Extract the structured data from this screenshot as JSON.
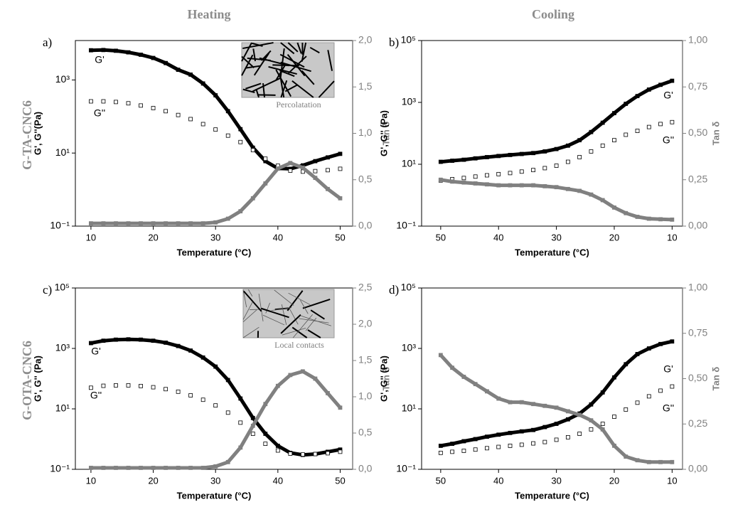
{
  "column_titles": [
    "Heating",
    "Cooling"
  ],
  "row_titles": [
    "G-TA-CNC6",
    "G-OTA-CNC6"
  ],
  "chart_data": [
    {
      "type": "line",
      "panel_label": "a)",
      "xlabel": "Temperature (°C)",
      "ylabel": "G', G''(Pa)",
      "y2label": "Tan δ",
      "annotation": "Percolatation",
      "xlim": [
        7.5,
        52
      ],
      "xticks": [
        10,
        20,
        30,
        40,
        50
      ],
      "yscale": "log",
      "ylim": [
        0.1,
        12000
      ],
      "yticks": [
        {
          "value": 0.1,
          "label": "10⁻¹"
        },
        {
          "value": 10,
          "label": "10¹"
        },
        {
          "value": 1000,
          "label": "10³"
        }
      ],
      "y2lim": [
        0,
        2
      ],
      "y2ticks": [
        {
          "value": 0,
          "label": "0,0"
        },
        {
          "value": 0.5,
          "label": "0,5"
        },
        {
          "value": 1,
          "label": "1,0"
        },
        {
          "value": 1.5,
          "label": "1,5"
        },
        {
          "value": 2,
          "label": "2,0"
        }
      ],
      "x": [
        10,
        12,
        14,
        16,
        18,
        20,
        22,
        24,
        26,
        28,
        30,
        32,
        34,
        36,
        38,
        40,
        42,
        44,
        46,
        48,
        50
      ],
      "series": [
        {
          "name": "G'",
          "color": "#000000",
          "marker": "filled",
          "values": [
            6500,
            6600,
            6300,
            5700,
            4900,
            4000,
            2900,
            1900,
            1400,
            800,
            380,
            140,
            45,
            14,
            6,
            3.8,
            3.7,
            4.6,
            6,
            7.6,
            9.5
          ]
        },
        {
          "name": "G''",
          "color": "#000000",
          "marker": "open",
          "values": [
            260,
            260,
            250,
            230,
            200,
            170,
            140,
            110,
            85,
            62,
            44,
            30,
            20,
            12,
            7,
            4.5,
            3.3,
            3.1,
            3.2,
            3.4,
            3.7
          ]
        },
        {
          "color": "#808080",
          "marker": "filled",
          "axis": "y2",
          "values": [
            0.03,
            0.03,
            0.03,
            0.03,
            0.03,
            0.03,
            0.03,
            0.03,
            0.03,
            0.03,
            0.04,
            0.08,
            0.16,
            0.3,
            0.46,
            0.62,
            0.68,
            0.63,
            0.52,
            0.4,
            0.3
          ]
        }
      ]
    },
    {
      "type": "line",
      "panel_label": "b)",
      "xlabel": "Temperature (°C)",
      "ylabel": "G', G'' (Pa)",
      "y2label": "Tan δ",
      "xlim": [
        53.3,
        8.2
      ],
      "xticks": [
        50,
        40,
        30,
        20,
        10
      ],
      "yscale": "log",
      "ylim": [
        0.1,
        100000
      ],
      "yticks": [
        {
          "value": 0.1,
          "label": "10⁻¹"
        },
        {
          "value": 10,
          "label": "10¹"
        },
        {
          "value": 1000,
          "label": "10³"
        },
        {
          "value": 100000,
          "label": "10⁵"
        }
      ],
      "y2lim": [
        0,
        1
      ],
      "y2ticks": [
        {
          "value": 0,
          "label": "0,00"
        },
        {
          "value": 0.25,
          "label": "0,25"
        },
        {
          "value": 0.5,
          "label": "0,50"
        },
        {
          "value": 0.75,
          "label": "0,75"
        },
        {
          "value": 1,
          "label": "1,00"
        }
      ],
      "x": [
        50,
        48,
        46,
        44,
        42,
        40,
        38,
        36,
        34,
        32,
        30,
        28,
        26,
        24,
        22,
        20,
        18,
        16,
        14,
        12,
        10
      ],
      "series": [
        {
          "name": "G'",
          "color": "#000000",
          "marker": "filled",
          "values": [
            12,
            13,
            14,
            15.5,
            17,
            18.5,
            20,
            21.5,
            23,
            26,
            31,
            40,
            60,
            110,
            220,
            450,
            900,
            1600,
            2600,
            3700,
            5000
          ]
        },
        {
          "name": "G''",
          "color": "#000000",
          "marker": "open",
          "values": [
            3,
            3.3,
            3.6,
            4,
            4.4,
            4.8,
            5.2,
            5.8,
            6.5,
            7.5,
            9,
            12,
            17,
            26,
            40,
            60,
            90,
            120,
            160,
            200,
            230
          ]
        },
        {
          "color": "#808080",
          "marker": "filled",
          "axis": "y2",
          "values": [
            0.25,
            0.24,
            0.235,
            0.23,
            0.225,
            0.22,
            0.22,
            0.22,
            0.22,
            0.215,
            0.21,
            0.2,
            0.19,
            0.17,
            0.14,
            0.1,
            0.07,
            0.05,
            0.04,
            0.037,
            0.035
          ]
        }
      ]
    },
    {
      "type": "line",
      "panel_label": "c)",
      "xlabel": "Temperature (°C)",
      "ylabel": "G', G'' (Pa)",
      "y2label": "Tan δ",
      "annotation": "Local contacts",
      "xlim": [
        7.5,
        52
      ],
      "xticks": [
        10,
        20,
        30,
        40,
        50
      ],
      "yscale": "log",
      "ylim": [
        0.1,
        100000
      ],
      "yticks": [
        {
          "value": 0.1,
          "label": "10⁻¹"
        },
        {
          "value": 10,
          "label": "10¹"
        },
        {
          "value": 1000,
          "label": "10³"
        },
        {
          "value": 100000,
          "label": "10⁵"
        }
      ],
      "y2lim": [
        0,
        2.5
      ],
      "y2ticks": [
        {
          "value": 0,
          "label": "0,0"
        },
        {
          "value": 0.5,
          "label": "0,5"
        },
        {
          "value": 1,
          "label": "1,0"
        },
        {
          "value": 1.5,
          "label": "1,5"
        },
        {
          "value": 2,
          "label": "2,0"
        },
        {
          "value": 2.5,
          "label": "2,5"
        }
      ],
      "x": [
        10,
        12,
        14,
        16,
        18,
        20,
        22,
        24,
        26,
        28,
        30,
        32,
        34,
        36,
        38,
        40,
        42,
        44,
        46,
        48,
        50
      ],
      "series": [
        {
          "name": "G'",
          "color": "#000000",
          "marker": "filled",
          "values": [
            1500,
            1800,
            1950,
            2000,
            1950,
            1800,
            1550,
            1200,
            850,
            500,
            250,
            90,
            22,
            5,
            1.5,
            0.6,
            0.35,
            0.3,
            0.32,
            0.38,
            0.45
          ]
        },
        {
          "name": "G''",
          "color": "#000000",
          "marker": "open",
          "values": [
            50,
            58,
            60,
            60,
            57,
            52,
            45,
            37,
            28,
            20,
            13,
            7.5,
            3.5,
            1.5,
            0.7,
            0.42,
            0.33,
            0.31,
            0.32,
            0.34,
            0.38
          ]
        },
        {
          "color": "#808080",
          "marker": "filled",
          "axis": "y2",
          "values": [
            0.02,
            0.02,
            0.02,
            0.02,
            0.02,
            0.02,
            0.02,
            0.02,
            0.02,
            0.02,
            0.04,
            0.1,
            0.3,
            0.6,
            0.9,
            1.15,
            1.3,
            1.35,
            1.25,
            1.05,
            0.85
          ]
        }
      ]
    },
    {
      "type": "line",
      "panel_label": "d)",
      "xlabel": "Temperature (°C)",
      "ylabel": "G', G'' (Pa)",
      "y2label": "Tan δ",
      "xlim": [
        53.3,
        8.2
      ],
      "xticks": [
        50,
        40,
        30,
        20,
        10
      ],
      "yscale": "log",
      "ylim": [
        0.1,
        100000
      ],
      "yticks": [
        {
          "value": 0.1,
          "label": "10⁻¹"
        },
        {
          "value": 10,
          "label": "10¹"
        },
        {
          "value": 1000,
          "label": "10³"
        },
        {
          "value": 100000,
          "label": "10⁵"
        }
      ],
      "y2lim": [
        0,
        1
      ],
      "y2ticks": [
        {
          "value": 0,
          "label": "0,00"
        },
        {
          "value": 0.25,
          "label": "0,25"
        },
        {
          "value": 0.5,
          "label": "0,50"
        },
        {
          "value": 0.75,
          "label": "0,75"
        },
        {
          "value": 1,
          "label": "1,00"
        }
      ],
      "x": [
        50,
        48,
        46,
        44,
        42,
        40,
        38,
        36,
        34,
        32,
        30,
        28,
        26,
        24,
        22,
        20,
        18,
        16,
        14,
        12,
        10
      ],
      "series": [
        {
          "name": "G'",
          "color": "#000000",
          "marker": "filled",
          "values": [
            0.6,
            0.7,
            0.85,
            1,
            1.2,
            1.4,
            1.6,
            1.8,
            2,
            2.5,
            3.2,
            4.5,
            7,
            14,
            35,
            110,
            300,
            650,
            1000,
            1400,
            1700
          ]
        },
        {
          "name": "G''",
          "color": "#000000",
          "marker": "open",
          "values": [
            0.35,
            0.38,
            0.41,
            0.45,
            0.5,
            0.55,
            0.6,
            0.65,
            0.72,
            0.8,
            0.95,
            1.15,
            1.5,
            2.1,
            3.2,
            5.5,
            9.5,
            16,
            26,
            40,
            55
          ]
        },
        {
          "color": "#808080",
          "marker": "filled",
          "axis": "y2",
          "values": [
            0.63,
            0.56,
            0.51,
            0.47,
            0.43,
            0.39,
            0.37,
            0.37,
            0.36,
            0.35,
            0.34,
            0.32,
            0.3,
            0.27,
            0.22,
            0.13,
            0.07,
            0.05,
            0.04,
            0.04,
            0.04
          ]
        }
      ]
    }
  ]
}
